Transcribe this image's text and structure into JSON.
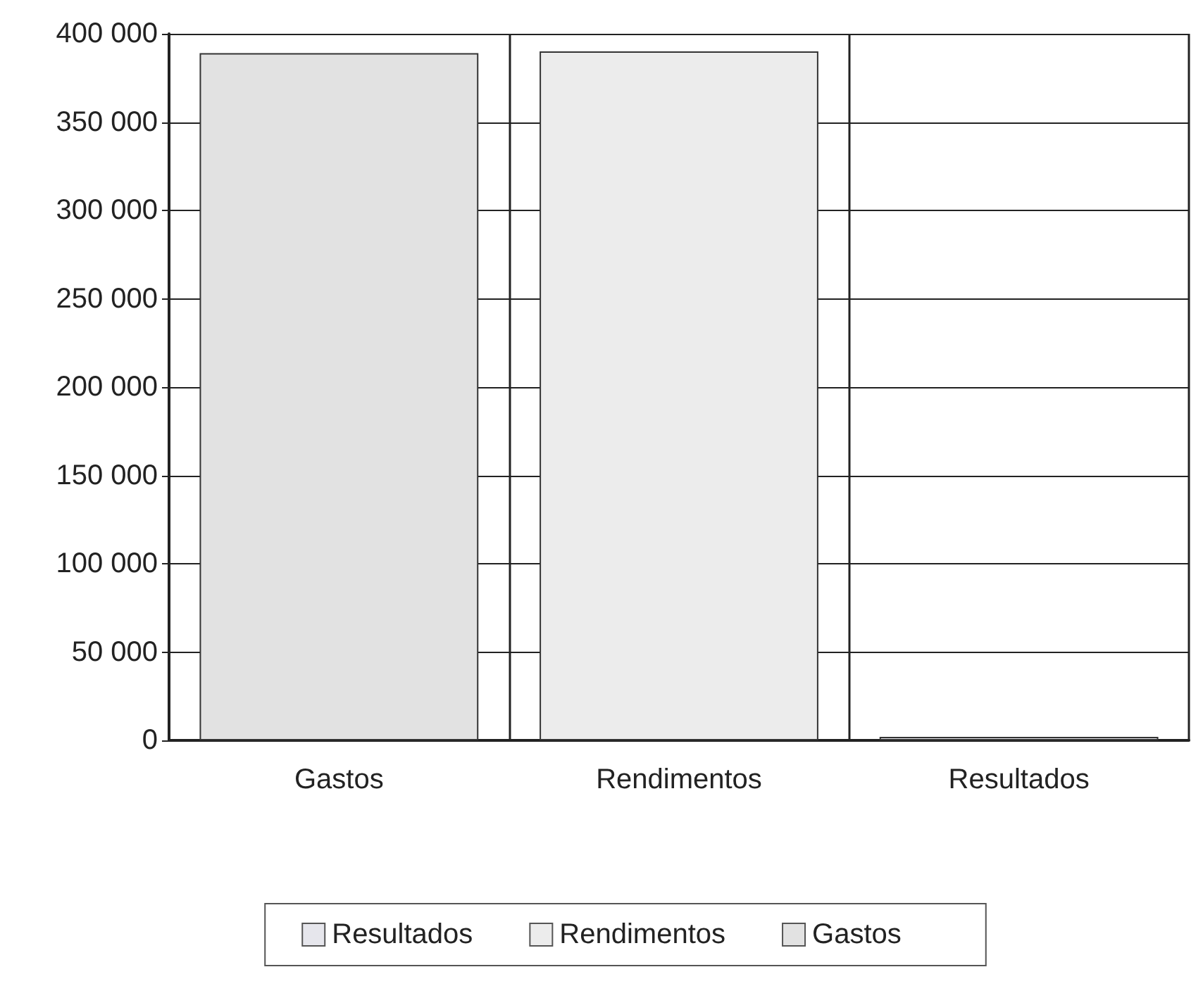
{
  "chart_data": {
    "type": "bar",
    "categories": [
      "Gastos",
      "Rendimentos",
      "Resultados"
    ],
    "stacked": true,
    "series": [
      {
        "name": "Resultados",
        "color": "#e6e6ec",
        "values": [
          null,
          null,
          2000
        ]
      },
      {
        "name": "Rendimentos",
        "color": "#ececec",
        "values": [
          null,
          390000,
          null
        ]
      },
      {
        "name": "Gastos",
        "color": "#e2e2e2",
        "values": [
          389000,
          null,
          null
        ]
      }
    ],
    "ylim": [
      0,
      400000
    ],
    "yticks": [
      0,
      {
        "value": 50000,
        "label": "50 000"
      },
      {
        "value": 100000,
        "label": "100 000"
      },
      {
        "value": 150000,
        "label": "150 000"
      },
      {
        "value": 200000,
        "label": "200 000"
      },
      {
        "value": 250000,
        "label": "250 000"
      },
      {
        "value": 300000,
        "label": "300 000"
      },
      {
        "value": 350000,
        "label": "350 000"
      },
      {
        "value": 400000,
        "label": "400 000"
      }
    ],
    "grid": true,
    "legend": "bottom"
  }
}
